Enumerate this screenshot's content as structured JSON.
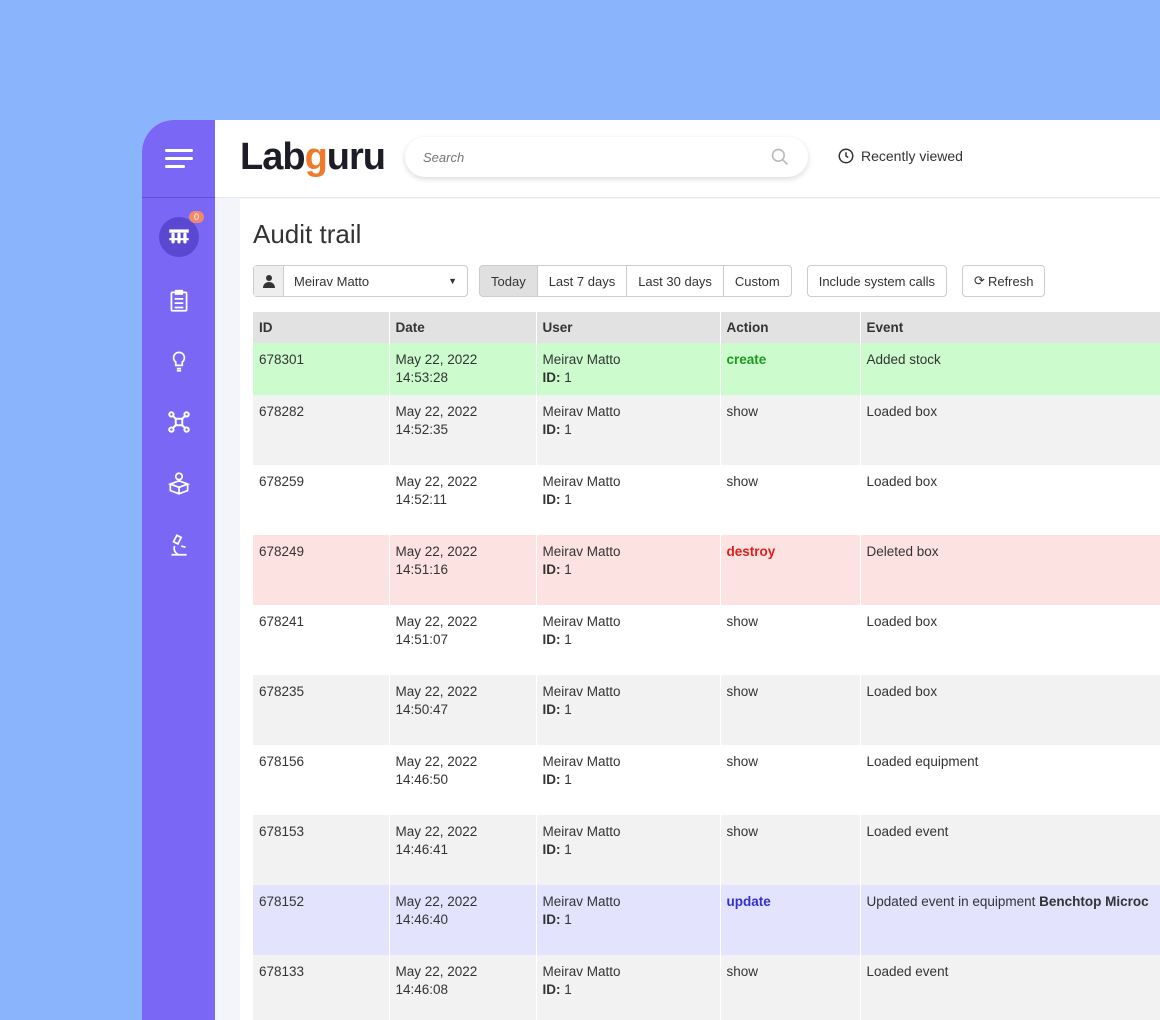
{
  "app": {
    "logo": "Labguru",
    "search_placeholder": "Search",
    "recently_viewed": "Recently viewed"
  },
  "sidebar": {
    "badge_count": "0",
    "items": [
      "inventory-icon",
      "clipboard-icon",
      "lightbulb-icon",
      "network-icon",
      "box-location-icon",
      "microscope-icon"
    ]
  },
  "page": {
    "title": "Audit trail"
  },
  "toolbar": {
    "user": "Meirav Matto",
    "ranges": [
      "Today",
      "Last 7 days",
      "Last 30 days",
      "Custom"
    ],
    "selected_range": "Today",
    "include_system_calls": "Include system calls",
    "refresh": "Refresh"
  },
  "table": {
    "headers": [
      "ID",
      "Date",
      "User",
      "Action",
      "Event"
    ],
    "rows": [
      {
        "id": "678301",
        "date1": "May 22, 2022",
        "date2": "14:53:28",
        "user": "Meirav Matto",
        "uid_label": "ID:",
        "uid": "1",
        "action": "create",
        "event": "Added stock",
        "event_bold": ""
      },
      {
        "id": "678282",
        "date1": "May 22, 2022",
        "date2": "14:52:35",
        "user": "Meirav Matto",
        "uid_label": "ID:",
        "uid": "1",
        "action": "show",
        "event": "Loaded box",
        "event_bold": ""
      },
      {
        "id": "678259",
        "date1": "May 22, 2022 14:52:11",
        "date2": "",
        "user": "Meirav Matto",
        "uid_label": "ID:",
        "uid": "1",
        "action": "show",
        "event": "Loaded box",
        "event_bold": ""
      },
      {
        "id": "678249",
        "date1": "May 22, 2022 14:51:16",
        "date2": "",
        "user": "Meirav Matto",
        "uid_label": "ID:",
        "uid": "1",
        "action": "destroy",
        "event": "Deleted box",
        "event_bold": ""
      },
      {
        "id": "678241",
        "date1": "May 22, 2022",
        "date2": "14:51:07",
        "user": "Meirav Matto",
        "uid_label": "ID:",
        "uid": "1",
        "action": "show",
        "event": "Loaded box",
        "event_bold": ""
      },
      {
        "id": "678235",
        "date1": "May 22, 2022",
        "date2": "14:50:47",
        "user": "Meirav Matto",
        "uid_label": "ID:",
        "uid": "1",
        "action": "show",
        "event": "Loaded box",
        "event_bold": ""
      },
      {
        "id": "678156",
        "date1": "May 22, 2022",
        "date2": "14:46:50",
        "user": "Meirav Matto",
        "uid_label": "ID:",
        "uid": "1",
        "action": "show",
        "event": "Loaded equipment",
        "event_bold": ""
      },
      {
        "id": "678153",
        "date1": "May 22, 2022",
        "date2": "14:46:41",
        "user": "Meirav Matto",
        "uid_label": "ID:",
        "uid": "1",
        "action": "show",
        "event": "Loaded event",
        "event_bold": ""
      },
      {
        "id": "678152",
        "date1": "May 22, 2022",
        "date2": "14:46:40",
        "user": "Meirav Matto",
        "uid_label": "ID:",
        "uid": "1",
        "action": "update",
        "event": "Updated event in equipment ",
        "event_bold": "Benchtop Microc"
      },
      {
        "id": "678133",
        "date1": "May 22, 2022",
        "date2": "14:46:08",
        "user": "Meirav Matto",
        "uid_label": "ID:",
        "uid": "1",
        "action": "show",
        "event": "Loaded event",
        "event_bold": ""
      }
    ]
  },
  "colors": {
    "sidebar": "#7a67f6",
    "create_row": "#ccfcce",
    "destroy_row": "#fde2e2",
    "update_row": "#e3e3fd",
    "create": "#1f9a1f",
    "destroy": "#e01e1e",
    "update": "#3030d0"
  }
}
